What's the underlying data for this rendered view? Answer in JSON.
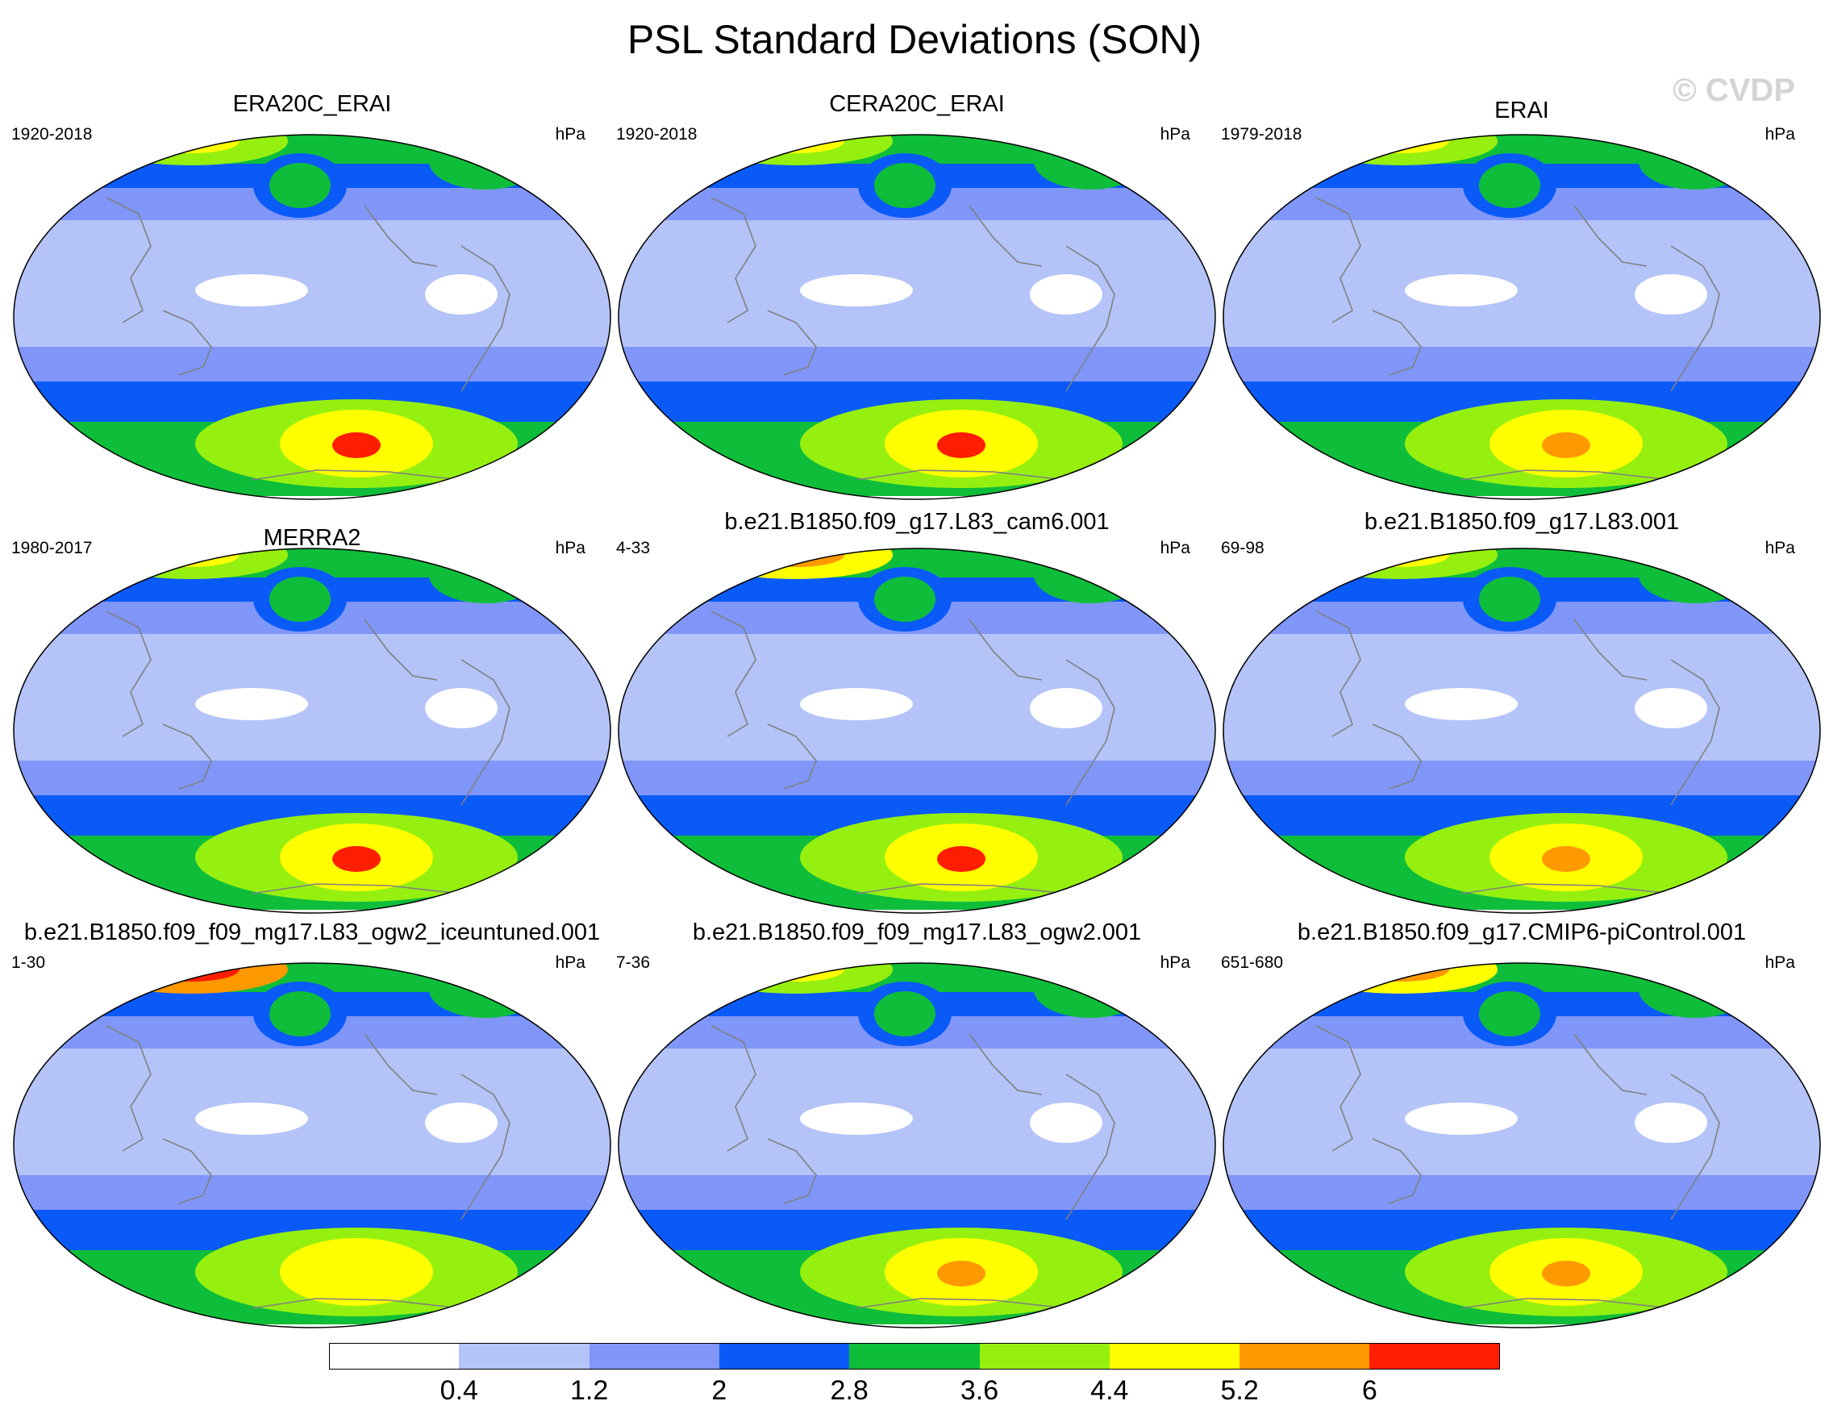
{
  "title": "PSL Standard Deviations (SON)",
  "watermark": "© CVDP",
  "panels": [
    {
      "title": "ERA20C_ERAI",
      "years": "1920-2018",
      "units": "hPa",
      "southern_max": "6.4",
      "northern_peak": "4.4"
    },
    {
      "title": "CERA20C_ERAI",
      "years": "1920-2018",
      "units": "hPa",
      "southern_max": "6.0",
      "northern_peak": "4.4"
    },
    {
      "title": "ERAI",
      "years": "1979-2018",
      "units": "hPa",
      "southern_max": "5.2",
      "northern_peak": "4.4"
    },
    {
      "title": "MERRA2",
      "years": "1980-2017",
      "units": "hPa",
      "southern_max": "6.0",
      "northern_peak": "4.4"
    },
    {
      "title": "b.e21.B1850.f09_g17.L83_cam6.001",
      "years": "4-33",
      "units": "hPa",
      "southern_max": "6.0",
      "northern_peak": "5.2"
    },
    {
      "title": "b.e21.B1850.f09_g17.L83.001",
      "years": "69-98",
      "units": "hPa",
      "southern_max": "5.2",
      "northern_peak": "4.4"
    },
    {
      "title": "b.e21.B1850.f09_f09_mg17.L83_ogw2_iceuntuned.001",
      "years": "1-30",
      "units": "hPa",
      "southern_max": "4.4",
      "northern_peak": "6.0"
    },
    {
      "title": "b.e21.B1850.f09_f09_mg17.L83_ogw2.001",
      "years": "7-36",
      "units": "hPa",
      "southern_max": "5.2",
      "northern_peak": "4.4"
    },
    {
      "title": "b.e21.B1850.f09_g17.CMIP6-piControl.001",
      "years": "651-680",
      "units": "hPa",
      "southern_max": "5.2",
      "northern_peak": "5.2"
    }
  ],
  "colorbar": {
    "levels": [
      "0.4",
      "1.2",
      "2",
      "2.8",
      "3.6",
      "4.4",
      "5.2",
      "6"
    ],
    "colors": [
      "#ffffff",
      "#b4c3f8",
      "#8096f8",
      "#0a5af8",
      "#0ebe3a",
      "#96f00f",
      "#ffff00",
      "#ff9900",
      "#ff1e00"
    ]
  }
}
